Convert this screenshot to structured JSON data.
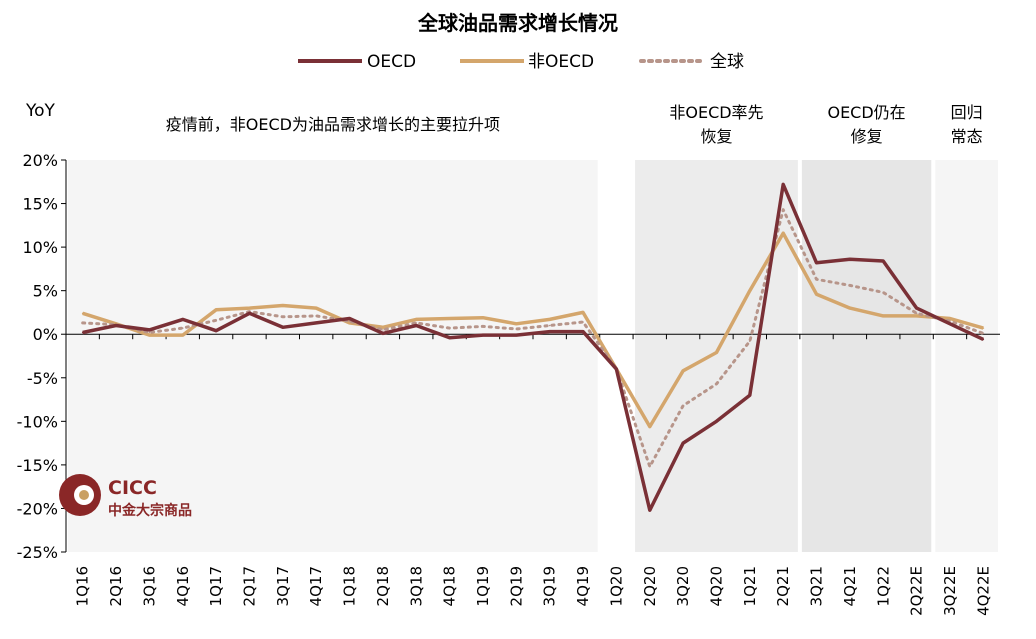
{
  "chart_data": {
    "type": "line",
    "title": "全球油品需求增长情况",
    "ylabel": "YoY",
    "xlabel": "",
    "ylim": [
      -25,
      20
    ],
    "yticks": [
      20,
      15,
      10,
      5,
      0,
      -5,
      -10,
      -15,
      -20,
      -25
    ],
    "ytick_labels": [
      "20%",
      "15%",
      "10%",
      "5%",
      "0%",
      "-5%",
      "-10%",
      "-15%",
      "-20%",
      "-25%"
    ],
    "categories": [
      "1Q16",
      "2Q16",
      "3Q16",
      "4Q16",
      "1Q17",
      "2Q17",
      "3Q17",
      "4Q17",
      "1Q18",
      "2Q18",
      "3Q18",
      "4Q18",
      "1Q19",
      "2Q19",
      "3Q19",
      "4Q19",
      "1Q20",
      "2Q20",
      "3Q20",
      "4Q20",
      "1Q21",
      "2Q21",
      "3Q21",
      "4Q21",
      "1Q22",
      "2Q22E",
      "3Q22E",
      "4Q22E"
    ],
    "series": [
      {
        "name": "OECD",
        "style": "solid",
        "color": "#7a3036",
        "values": [
          0.2,
          1.0,
          0.5,
          1.7,
          0.4,
          2.4,
          0.8,
          1.3,
          1.8,
          0.1,
          1.0,
          -0.4,
          -0.1,
          -0.1,
          0.3,
          0.3,
          -4.0,
          -20.2,
          -12.5,
          -10.0,
          -7.0,
          17.2,
          8.2,
          8.6,
          8.4,
          3.0,
          1.2,
          -0.6
        ]
      },
      {
        "name": "非OECD",
        "style": "solid",
        "color": "#d4a66c",
        "values": [
          2.4,
          1.2,
          -0.1,
          -0.1,
          2.8,
          3.0,
          3.3,
          3.0,
          1.3,
          0.8,
          1.7,
          1.8,
          1.9,
          1.2,
          1.7,
          2.5,
          -4.0,
          -10.6,
          -4.2,
          -2.1,
          5.0,
          11.6,
          4.6,
          3.0,
          2.1,
          2.1,
          1.8,
          0.7
        ]
      },
      {
        "name": "全球",
        "style": "dotted",
        "color": "#b7958a",
        "values": [
          1.3,
          1.1,
          0.2,
          0.7,
          1.6,
          2.6,
          2.0,
          2.1,
          1.5,
          0.5,
          1.3,
          0.7,
          0.9,
          0.6,
          1.0,
          1.4,
          -4.0,
          -15.2,
          -8.2,
          -5.7,
          -0.8,
          14.3,
          6.3,
          5.6,
          4.8,
          2.4,
          1.5,
          0.1
        ]
      }
    ],
    "shaded_regions": [
      {
        "from": "1Q16",
        "to": "4Q19",
        "label": "疫情前，非OECD为油品需求增长的主要拉升项",
        "color": "#f5f5f5"
      },
      {
        "from": "2Q20",
        "to": "2Q21",
        "label": "非OECD率先\n恢复",
        "color": "#ececec"
      },
      {
        "from": "3Q21",
        "to": "2Q22E",
        "label": "OECD仍在\n修复",
        "color": "#e6e6e6"
      },
      {
        "from": "3Q22E",
        "to": "4Q22E",
        "label": "回归\n常态",
        "color": "#f5f5f5"
      }
    ],
    "legend": "top-center"
  },
  "logo": {
    "name": "CICC",
    "subtitle": "中金大宗商品"
  }
}
